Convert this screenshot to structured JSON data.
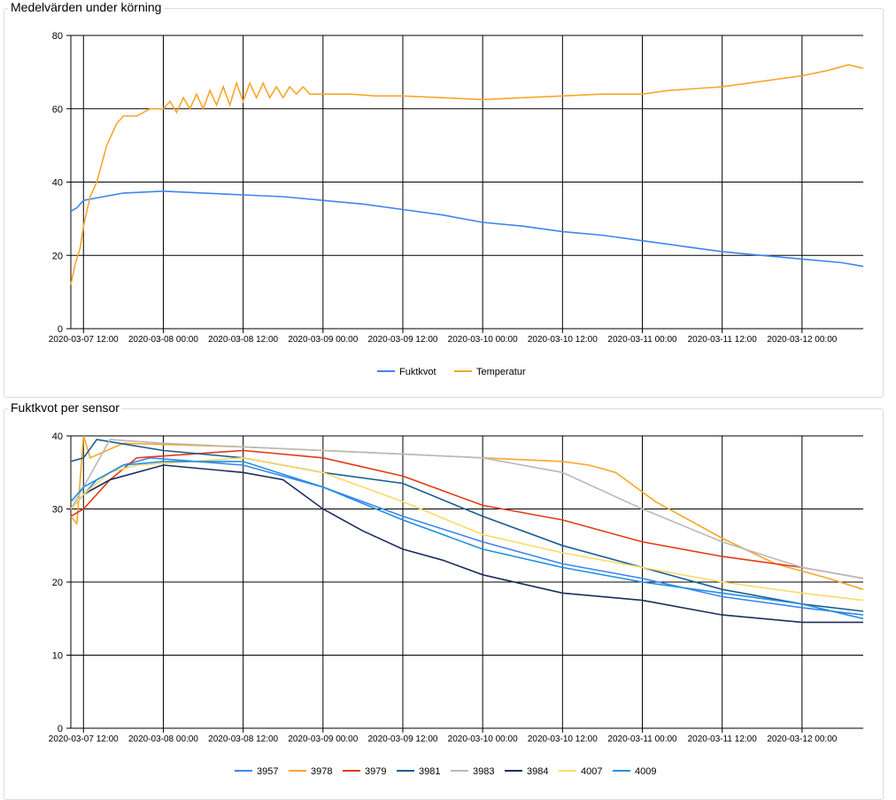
{
  "chart_data": [
    {
      "type": "line",
      "title": "Medelvärden under körning",
      "x_unit": "hours since 2020-03-07 12:00",
      "xlim": [
        -1.9,
        117.2
      ],
      "ylim": [
        0,
        80
      ],
      "yticks": [
        0,
        20,
        40,
        60,
        80
      ],
      "xticks": [
        0,
        12,
        24,
        36,
        48,
        60,
        72,
        84,
        96,
        108
      ],
      "xtick_labels": [
        "2020-03-07 12:00",
        "2020-03-08 00:00",
        "2020-03-08 12:00",
        "2020-03-09 00:00",
        "2020-03-09 12:00",
        "2020-03-10 00:00",
        "2020-03-10 12:00",
        "2020-03-11 00:00",
        "2020-03-11 12:00",
        "2020-03-12 00:00"
      ],
      "grid": true,
      "legend": "bottom-center",
      "series": [
        {
          "name": "Fuktkvot",
          "color": "#3d85f0",
          "x": [
            -1.9,
            -1,
            0,
            3,
            6,
            12,
            18,
            24,
            30,
            36,
            42,
            48,
            54,
            60,
            66,
            72,
            78,
            84,
            90,
            96,
            102,
            108,
            114,
            117.2
          ],
          "y": [
            32,
            33,
            35,
            36,
            37,
            37.5,
            37,
            36.5,
            36,
            35,
            34,
            32.5,
            31,
            29,
            28,
            26.5,
            25.5,
            24,
            22.5,
            21,
            20,
            19,
            18,
            17
          ]
        },
        {
          "name": "Temperatur",
          "color": "#f7a62b",
          "x": [
            -1.9,
            -1.2,
            -0.5,
            0,
            1,
            2,
            3.5,
            5,
            6,
            8,
            10,
            12,
            13,
            14,
            15,
            16,
            17,
            18,
            19,
            20,
            21,
            22,
            23,
            24,
            25,
            26,
            27,
            28,
            29,
            30,
            31,
            32,
            33,
            34,
            36,
            40,
            44,
            48,
            54,
            60,
            66,
            72,
            78,
            84,
            88,
            92,
            96,
            100,
            104,
            108,
            112,
            115,
            117.2
          ],
          "y": [
            12,
            18,
            22,
            28,
            36,
            40,
            50,
            56,
            58,
            58,
            60,
            60,
            62,
            59,
            63,
            60,
            64,
            60,
            65,
            61,
            66,
            61,
            67,
            62,
            67,
            63,
            67,
            63,
            66,
            63,
            66,
            64,
            66,
            64,
            64,
            64,
            63.5,
            63.5,
            63,
            62.5,
            63,
            63.5,
            64,
            64,
            65,
            65.5,
            66,
            67,
            68,
            69,
            70.5,
            72,
            71
          ]
        }
      ]
    },
    {
      "type": "line",
      "title": "Fuktkvot per sensor",
      "x_unit": "hours since 2020-03-07 12:00",
      "xlim": [
        -1.9,
        117.2
      ],
      "ylim": [
        0,
        40
      ],
      "yticks": [
        0,
        10,
        20,
        30,
        40
      ],
      "xticks": [
        0,
        12,
        24,
        36,
        48,
        60,
        72,
        84,
        96,
        108
      ],
      "xtick_labels": [
        "2020-03-07 12:00",
        "2020-03-08 00:00",
        "2020-03-08 12:00",
        "2020-03-09 00:00",
        "2020-03-09 12:00",
        "2020-03-10 00:00",
        "2020-03-10 12:00",
        "2020-03-11 00:00",
        "2020-03-11 12:00",
        "2020-03-12 00:00"
      ],
      "grid": true,
      "legend": "bottom-center",
      "series": [
        {
          "name": "3957",
          "color": "#3d85f0",
          "x": [
            -1.9,
            2,
            6,
            10,
            24,
            36,
            48,
            60,
            72,
            84,
            96,
            108,
            117.2
          ],
          "y": [
            30,
            34,
            36,
            37,
            36,
            33,
            29,
            25.5,
            22.5,
            20.5,
            18,
            16.5,
            15.5
          ]
        },
        {
          "name": "3978",
          "color": "#f7a62b",
          "x": [
            -1.9,
            -1,
            0,
            1,
            6,
            24,
            48,
            60,
            72,
            76,
            80,
            86,
            96,
            104,
            112,
            117.2
          ],
          "y": [
            29,
            28,
            40,
            37,
            39,
            38.5,
            37.5,
            37,
            36.5,
            36,
            35,
            31,
            26,
            22.5,
            20.5,
            19
          ]
        },
        {
          "name": "3979",
          "color": "#e23b17",
          "x": [
            -1.9,
            0,
            4,
            8,
            24,
            36,
            48,
            60,
            72,
            84,
            96,
            108,
            117.2
          ],
          "y": [
            29,
            30,
            34,
            37,
            38,
            37,
            34.5,
            30.5,
            28.5,
            25.5,
            23.5,
            22,
            20.5
          ]
        },
        {
          "name": "3981",
          "color": "#1b5e8f",
          "x": [
            -1.9,
            0,
            2,
            12,
            24,
            36,
            48,
            60,
            72,
            84,
            96,
            108,
            117.2
          ],
          "y": [
            36.5,
            37,
            39.5,
            38,
            37,
            35,
            33.5,
            29,
            25,
            22,
            19,
            17,
            16
          ]
        },
        {
          "name": "3983",
          "color": "#b9b9b9",
          "x": [
            -1.9,
            0,
            4,
            12,
            24,
            36,
            48,
            60,
            72,
            84,
            96,
            108,
            117.2
          ],
          "y": [
            30,
            33,
            39.5,
            39,
            38.5,
            38,
            37.5,
            37,
            35,
            30,
            25.5,
            22,
            20.5
          ]
        },
        {
          "name": "3984",
          "color": "#1c2f5c",
          "x": [
            -1.9,
            0,
            4,
            12,
            24,
            30,
            36,
            42,
            48,
            54,
            60,
            72,
            84,
            96,
            108,
            117.2
          ],
          "y": [
            30,
            32,
            34,
            36,
            35,
            34,
            30,
            27,
            24.5,
            23,
            21,
            18.5,
            17.5,
            15.5,
            14.5,
            14.5
          ]
        },
        {
          "name": "4007",
          "color": "#ffd966",
          "x": [
            -1.9,
            0,
            4,
            8,
            24,
            36,
            48,
            60,
            72,
            84,
            96,
            108,
            117.2
          ],
          "y": [
            30,
            32,
            35,
            36,
            37,
            35,
            31,
            26.5,
            24,
            22,
            20,
            18.5,
            17.5
          ]
        },
        {
          "name": "4009",
          "color": "#1e90e0",
          "x": [
            -1.9,
            0,
            6,
            12,
            24,
            36,
            48,
            60,
            72,
            84,
            96,
            108,
            117.2
          ],
          "y": [
            31,
            33,
            36,
            36.5,
            36.5,
            33,
            28.5,
            24.5,
            22,
            20,
            18.5,
            17,
            15
          ]
        }
      ]
    }
  ]
}
